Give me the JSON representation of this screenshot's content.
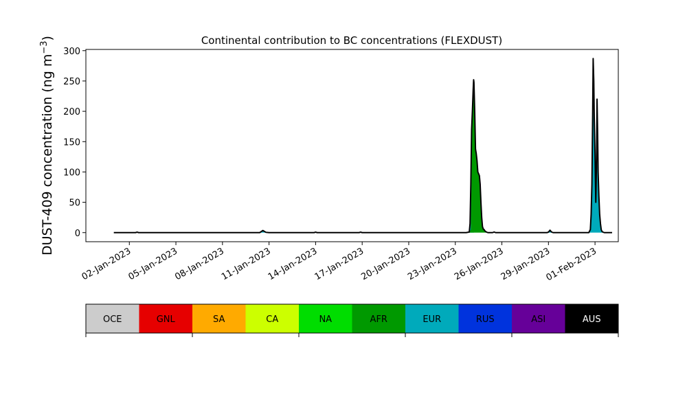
{
  "chart_data": {
    "type": "area",
    "title": "Continental contribution to BC concentrations (FLEXDUST)",
    "ylabel_main": "DUST-409 concentration (ng m",
    "ylabel_sup": "−3",
    "ylabel_close": ")",
    "xlabel": "",
    "ylim": [
      -15,
      302
    ],
    "yticks": [
      0,
      50,
      100,
      150,
      200,
      250,
      300
    ],
    "xlim": [
      -1.8,
      32.5
    ],
    "xticks": [
      {
        "day": 1,
        "label": "02-Jan-2023"
      },
      {
        "day": 4,
        "label": "05-Jan-2023"
      },
      {
        "day": 7,
        "label": "08-Jan-2023"
      },
      {
        "day": 10,
        "label": "11-Jan-2023"
      },
      {
        "day": 13,
        "label": "14-Jan-2023"
      },
      {
        "day": 16,
        "label": "17-Jan-2023"
      },
      {
        "day": 19,
        "label": "20-Jan-2023"
      },
      {
        "day": 22,
        "label": "23-Jan-2023"
      },
      {
        "day": 25,
        "label": "26-Jan-2023"
      },
      {
        "day": 28,
        "label": "29-Jan-2023"
      },
      {
        "day": 31,
        "label": "01-Feb-2023"
      }
    ],
    "regions": [
      {
        "name": "OCE",
        "color": "#cccccc",
        "text_color": "#000000"
      },
      {
        "name": "GNL",
        "color": "#e60000",
        "text_color": "#000000"
      },
      {
        "name": "SA",
        "color": "#ffaa00",
        "text_color": "#000000"
      },
      {
        "name": "CA",
        "color": "#ccff00",
        "text_color": "#000000"
      },
      {
        "name": "NA",
        "color": "#00dd00",
        "text_color": "#000000"
      },
      {
        "name": "AFR",
        "color": "#009900",
        "text_color": "#000000"
      },
      {
        "name": "EUR",
        "color": "#00aabb",
        "text_color": "#000000"
      },
      {
        "name": "RUS",
        "color": "#0033dd",
        "text_color": "#000000"
      },
      {
        "name": "ASI",
        "color": "#660099",
        "text_color": "#000000"
      },
      {
        "name": "AUS",
        "color": "#000000",
        "text_color": "#ffffff"
      }
    ],
    "series": [
      {
        "region": "EUR",
        "points": [
          [
            0,
            0
          ],
          [
            1.4,
            0
          ],
          [
            1.5,
            0.8
          ],
          [
            1.6,
            0
          ],
          [
            9.4,
            0
          ],
          [
            9.6,
            3.5
          ],
          [
            9.8,
            0.5
          ],
          [
            10,
            0
          ],
          [
            12.9,
            0
          ],
          [
            13.0,
            0.8
          ],
          [
            13.1,
            0
          ],
          [
            15.8,
            0
          ],
          [
            15.9,
            0.8
          ],
          [
            16.0,
            0
          ],
          [
            22.7,
            0
          ],
          [
            22.9,
            1
          ],
          [
            22.95,
            15
          ],
          [
            23.0,
            80
          ],
          [
            23.05,
            170
          ],
          [
            23.1,
            180
          ],
          [
            23.2,
            0
          ],
          [
            23.2,
            0
          ],
          [
            27.9,
            0
          ],
          [
            28.0,
            0.8
          ],
          [
            28.1,
            4
          ],
          [
            28.2,
            1
          ],
          [
            28.3,
            0
          ],
          [
            30.6,
            0
          ],
          [
            30.7,
            5
          ],
          [
            30.75,
            30
          ],
          [
            30.8,
            80
          ],
          [
            30.85,
            150
          ],
          [
            30.9,
            200
          ],
          [
            30.95,
            190
          ],
          [
            31.0,
            130
          ],
          [
            31.03,
            80
          ],
          [
            31.05,
            50
          ],
          [
            31.1,
            90
          ],
          [
            31.15,
            120
          ],
          [
            31.2,
            100
          ],
          [
            31.25,
            60
          ],
          [
            31.3,
            30
          ],
          [
            31.35,
            15
          ],
          [
            31.4,
            5
          ],
          [
            31.45,
            2
          ],
          [
            31.5,
            1
          ],
          [
            31.6,
            0
          ],
          [
            32.1,
            0
          ]
        ]
      },
      {
        "region": "AFR",
        "points": [
          [
            0,
            0
          ],
          [
            22.9,
            0
          ],
          [
            23.0,
            5
          ],
          [
            23.05,
            100
          ],
          [
            23.1,
            190
          ],
          [
            23.15,
            225
          ],
          [
            23.18,
            250
          ],
          [
            23.2,
            248
          ],
          [
            23.25,
            200
          ],
          [
            23.3,
            138
          ],
          [
            23.35,
            130
          ],
          [
            23.4,
            118
          ],
          [
            23.45,
            100
          ],
          [
            23.5,
            97
          ],
          [
            23.55,
            94
          ],
          [
            23.6,
            80
          ],
          [
            23.65,
            50
          ],
          [
            23.7,
            25
          ],
          [
            23.75,
            10
          ],
          [
            23.8,
            6
          ],
          [
            23.85,
            5
          ],
          [
            23.9,
            3
          ],
          [
            24.0,
            1
          ],
          [
            24.1,
            0
          ],
          [
            24.4,
            0
          ],
          [
            24.5,
            1
          ],
          [
            24.6,
            0
          ],
          [
            32.1,
            0
          ]
        ]
      }
    ],
    "total_line": [
      [
        0,
        0
      ],
      [
        1.4,
        0
      ],
      [
        1.5,
        0.8
      ],
      [
        1.6,
        0
      ],
      [
        9.4,
        0
      ],
      [
        9.6,
        3.5
      ],
      [
        9.8,
        0.5
      ],
      [
        10,
        0
      ],
      [
        12.9,
        0
      ],
      [
        13.0,
        0.8
      ],
      [
        13.1,
        0
      ],
      [
        15.8,
        0
      ],
      [
        15.9,
        0.8
      ],
      [
        16.0,
        0
      ],
      [
        22.7,
        0
      ],
      [
        22.9,
        1
      ],
      [
        22.95,
        15
      ],
      [
        23.0,
        80
      ],
      [
        23.05,
        170
      ],
      [
        23.1,
        200
      ],
      [
        23.15,
        235
      ],
      [
        23.18,
        252
      ],
      [
        23.2,
        248
      ],
      [
        23.25,
        200
      ],
      [
        23.3,
        138
      ],
      [
        23.35,
        130
      ],
      [
        23.4,
        118
      ],
      [
        23.45,
        100
      ],
      [
        23.5,
        97
      ],
      [
        23.55,
        94
      ],
      [
        23.6,
        80
      ],
      [
        23.65,
        50
      ],
      [
        23.7,
        25
      ],
      [
        23.75,
        10
      ],
      [
        23.8,
        6
      ],
      [
        23.85,
        5
      ],
      [
        23.9,
        3
      ],
      [
        24.0,
        1
      ],
      [
        24.1,
        0
      ],
      [
        24.4,
        0
      ],
      [
        24.5,
        1
      ],
      [
        24.6,
        0
      ],
      [
        27.9,
        0
      ],
      [
        28.0,
        0.8
      ],
      [
        28.1,
        4
      ],
      [
        28.2,
        1
      ],
      [
        28.3,
        0
      ],
      [
        30.6,
        0
      ],
      [
        30.7,
        5
      ],
      [
        30.75,
        30
      ],
      [
        30.8,
        80
      ],
      [
        30.85,
        200
      ],
      [
        30.88,
        287
      ],
      [
        30.92,
        250
      ],
      [
        30.95,
        190
      ],
      [
        31.0,
        130
      ],
      [
        31.03,
        80
      ],
      [
        31.05,
        50
      ],
      [
        31.1,
        120
      ],
      [
        31.13,
        220
      ],
      [
        31.17,
        160
      ],
      [
        31.2,
        100
      ],
      [
        31.25,
        60
      ],
      [
        31.3,
        30
      ],
      [
        31.35,
        15
      ],
      [
        31.4,
        5
      ],
      [
        31.45,
        2
      ],
      [
        31.5,
        1
      ],
      [
        31.6,
        0
      ],
      [
        32.1,
        0
      ]
    ]
  }
}
